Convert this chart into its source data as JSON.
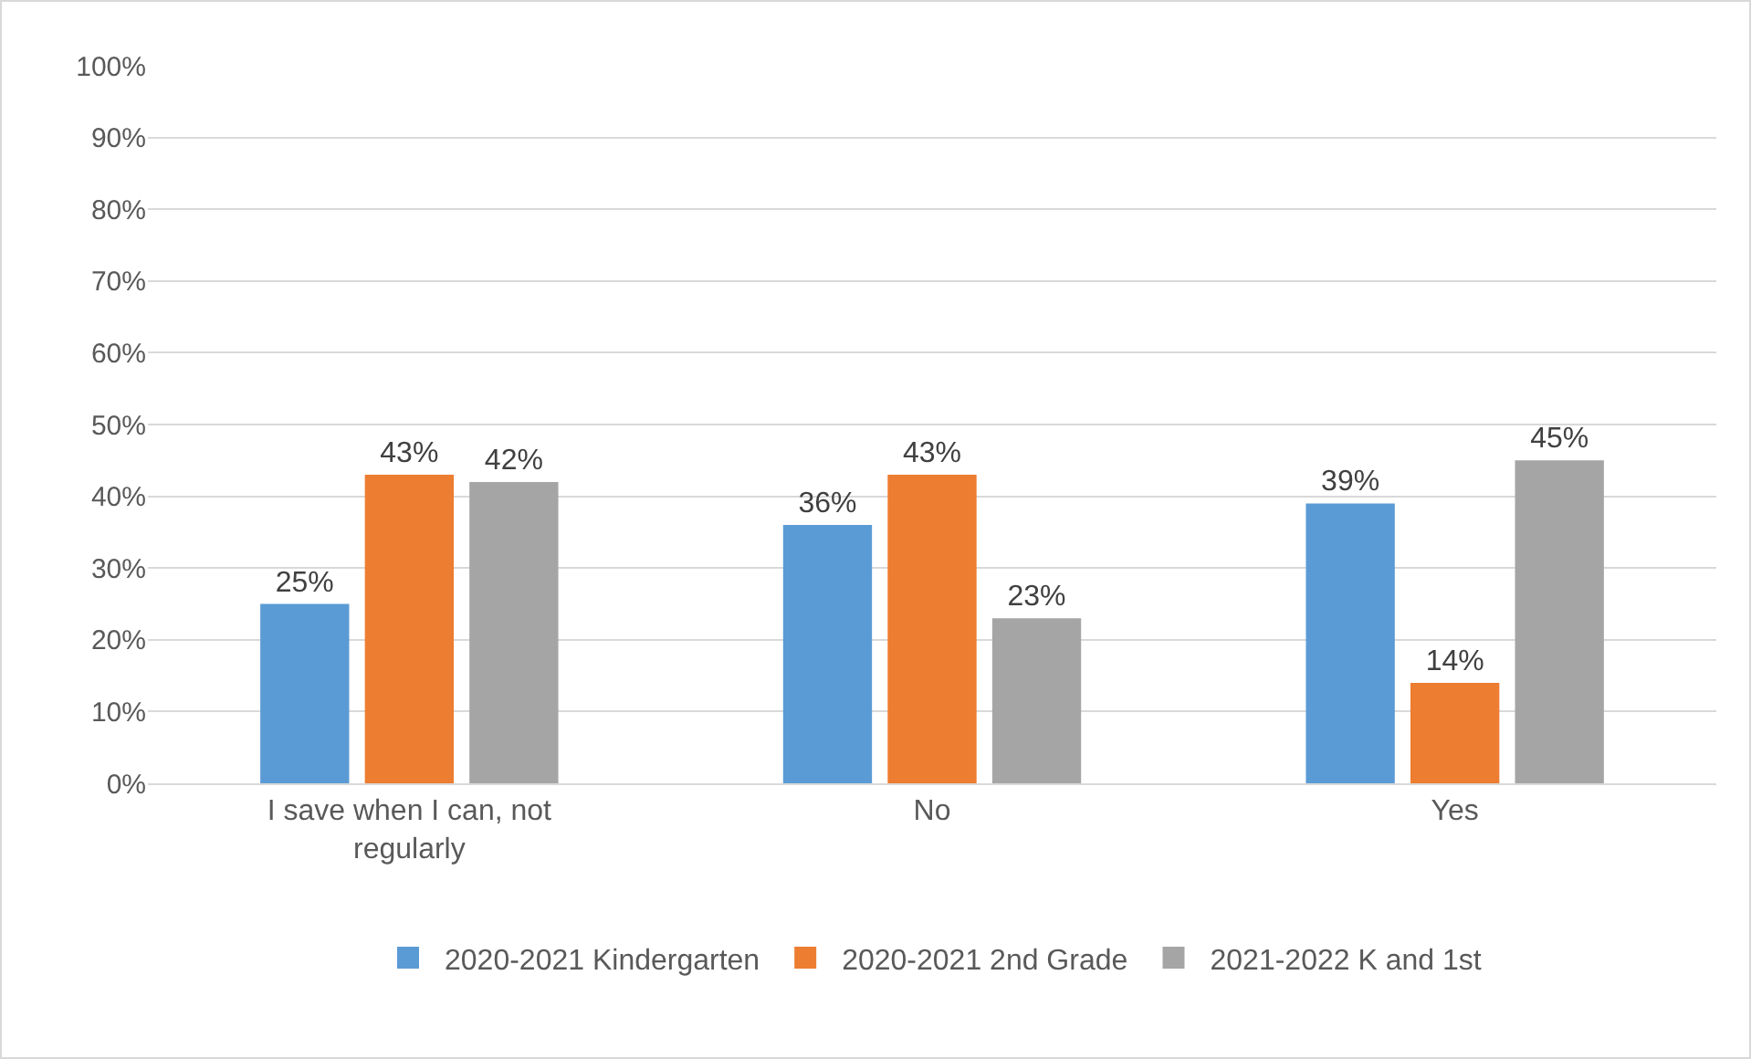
{
  "chart_data": {
    "type": "bar",
    "categories": [
      "I save when I can, not regularly",
      "No",
      "Yes"
    ],
    "series": [
      {
        "name": "2020-2021 Kindergarten",
        "color": "#5b9bd5",
        "values": [
          25,
          36,
          39
        ],
        "value_labels": [
          "25%",
          "36%",
          "39%"
        ]
      },
      {
        "name": "2020-2021 2nd Grade",
        "color": "#ed7d31",
        "values": [
          43,
          43,
          14
        ],
        "value_labels": [
          "43%",
          "43%",
          "14%"
        ]
      },
      {
        "name": "2021-2022 K and 1st",
        "color": "#a5a5a5",
        "values": [
          42,
          23,
          45
        ],
        "value_labels": [
          "42%",
          "23%",
          "45%"
        ]
      }
    ],
    "ylim": [
      0,
      100
    ],
    "yticks": [
      {
        "value": 0,
        "label": "0%"
      },
      {
        "value": 10,
        "label": "10%"
      },
      {
        "value": 20,
        "label": "20%"
      },
      {
        "value": 30,
        "label": "30%"
      },
      {
        "value": 40,
        "label": "40%"
      },
      {
        "value": 50,
        "label": "50%"
      },
      {
        "value": 60,
        "label": "60%"
      },
      {
        "value": 70,
        "label": "70%"
      },
      {
        "value": 80,
        "label": "80%"
      },
      {
        "value": 90,
        "label": "90%"
      },
      {
        "value": 100,
        "label": "100%"
      }
    ],
    "grid": "y",
    "legend": "bottom"
  }
}
